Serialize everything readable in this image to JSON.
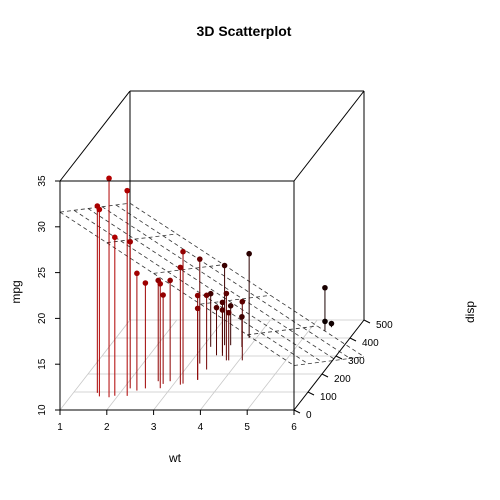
{
  "chart_data": {
    "type": "scatter",
    "title": "3D Scatterplot",
    "xlabel": "wt",
    "ylabel": "disp",
    "zlabel": "mpg",
    "xlim": [
      1,
      6
    ],
    "ylim": [
      0,
      500
    ],
    "zlim": [
      10,
      35
    ],
    "x_ticks": [
      "1",
      "2",
      "3",
      "4",
      "5",
      "6"
    ],
    "y_ticks": [
      "0",
      "100",
      "200",
      "300",
      "400",
      "500"
    ],
    "z_ticks": [
      "10",
      "15",
      "20",
      "25",
      "30",
      "35"
    ],
    "drop_lines": true,
    "regression_plane": true,
    "floor_grid": true,
    "point_color_gradient": [
      "#d00000",
      "#000000"
    ],
    "points": [
      {
        "wt": 2.62,
        "disp": 160.0,
        "mpg": 21.0
      },
      {
        "wt": 2.875,
        "disp": 160.0,
        "mpg": 21.0
      },
      {
        "wt": 2.32,
        "disp": 108.0,
        "mpg": 22.8
      },
      {
        "wt": 3.215,
        "disp": 258.0,
        "mpg": 21.4
      },
      {
        "wt": 3.44,
        "disp": 360.0,
        "mpg": 18.7
      },
      {
        "wt": 3.46,
        "disp": 225.0,
        "mpg": 18.1
      },
      {
        "wt": 3.57,
        "disp": 360.0,
        "mpg": 14.3
      },
      {
        "wt": 3.19,
        "disp": 146.7,
        "mpg": 24.4
      },
      {
        "wt": 3.15,
        "disp": 140.8,
        "mpg": 22.8
      },
      {
        "wt": 3.44,
        "disp": 167.6,
        "mpg": 19.2
      },
      {
        "wt": 3.44,
        "disp": 167.6,
        "mpg": 17.8
      },
      {
        "wt": 4.07,
        "disp": 275.8,
        "mpg": 16.4
      },
      {
        "wt": 3.73,
        "disp": 275.8,
        "mpg": 17.3
      },
      {
        "wt": 3.78,
        "disp": 275.8,
        "mpg": 15.2
      },
      {
        "wt": 5.25,
        "disp": 472.0,
        "mpg": 10.4
      },
      {
        "wt": 5.424,
        "disp": 460.0,
        "mpg": 10.4
      },
      {
        "wt": 5.345,
        "disp": 440.0,
        "mpg": 14.7
      },
      {
        "wt": 2.2,
        "disp": 78.7,
        "mpg": 32.4
      },
      {
        "wt": 1.615,
        "disp": 75.7,
        "mpg": 30.4
      },
      {
        "wt": 1.835,
        "disp": 71.1,
        "mpg": 33.9
      },
      {
        "wt": 2.465,
        "disp": 120.1,
        "mpg": 21.5
      },
      {
        "wt": 3.52,
        "disp": 318.0,
        "mpg": 15.5
      },
      {
        "wt": 3.435,
        "disp": 304.0,
        "mpg": 15.2
      },
      {
        "wt": 3.84,
        "disp": 350.0,
        "mpg": 13.3
      },
      {
        "wt": 3.845,
        "disp": 400.0,
        "mpg": 19.2
      },
      {
        "wt": 1.935,
        "disp": 79.0,
        "mpg": 27.3
      },
      {
        "wt": 2.14,
        "disp": 120.3,
        "mpg": 26.0
      },
      {
        "wt": 1.513,
        "disp": 95.1,
        "mpg": 30.4
      },
      {
        "wt": 3.17,
        "disp": 351.0,
        "mpg": 15.8
      },
      {
        "wt": 2.77,
        "disp": 145.0,
        "mpg": 19.7
      },
      {
        "wt": 3.57,
        "disp": 301.0,
        "mpg": 15.0
      },
      {
        "wt": 2.78,
        "disp": 121.0,
        "mpg": 21.4
      }
    ],
    "plane": {
      "intercept": 34.96055,
      "wt_coef": -3.35083,
      "disp_coef": -0.01772
    }
  }
}
